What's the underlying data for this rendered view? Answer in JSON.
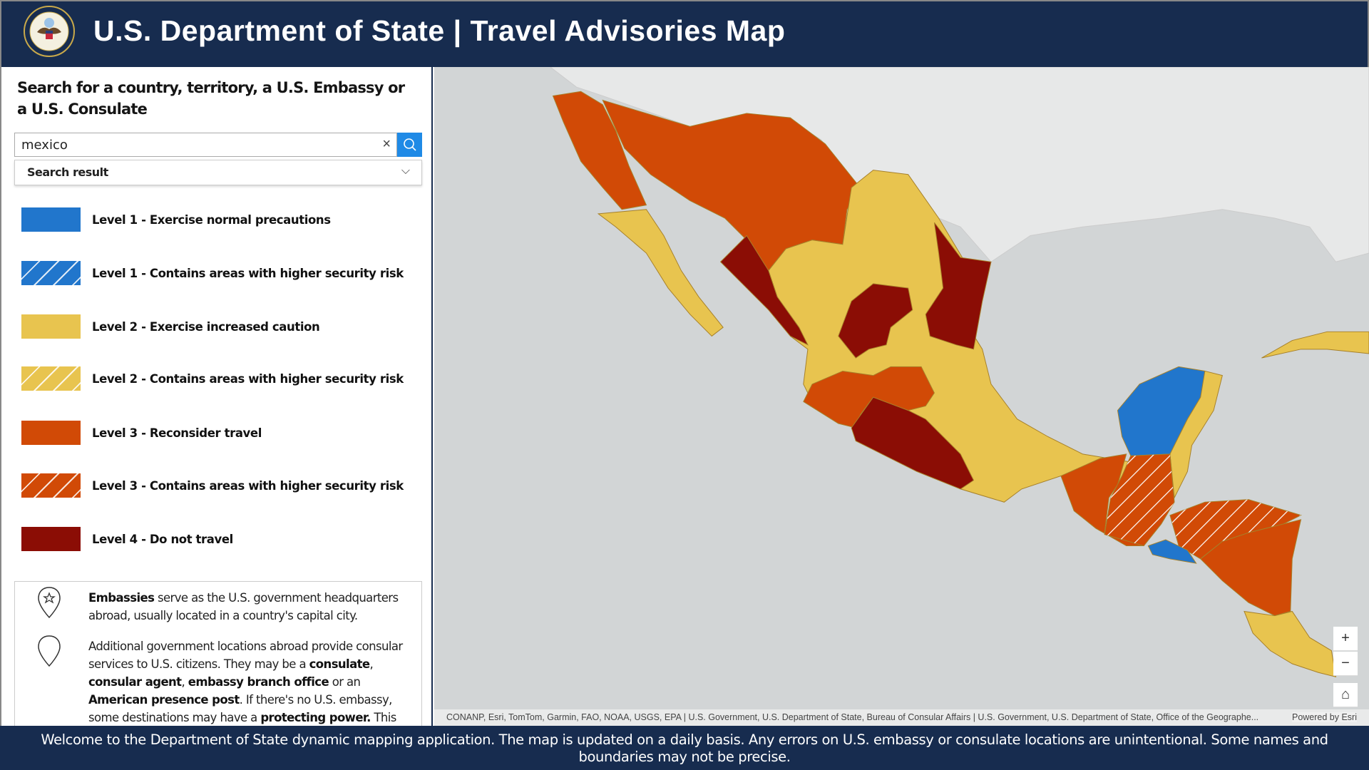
{
  "header": {
    "title": "U.S. Department of State | Travel Advisories Map",
    "seal_text": "Department of State - United States of America"
  },
  "search": {
    "heading": "Search for a country, territory, a U.S. Embassy or a U.S. Consulate",
    "value": "mexico",
    "clear_icon": "×",
    "result_label": "Search result",
    "chevron": "⌵"
  },
  "legend": [
    {
      "label": "Level 1 - Exercise normal precautions",
      "color": "#2176cc"
    },
    {
      "label": "Level 1 - Contains areas with higher security risk",
      "color": "#2176cc"
    },
    {
      "label": "Level 2 - Exercise increased caution",
      "color": "#e8c44f"
    },
    {
      "label": "Level 2 - Contains areas with higher security risk",
      "color": "#e8c44f"
    },
    {
      "label": "Level 3 - Reconsider travel",
      "color": "#d14a06"
    },
    {
      "label": "Level 3 - Contains areas with higher security risk",
      "color": "#d14a06"
    },
    {
      "label": "Level 4 - Do not travel",
      "color": "#8b0d05"
    }
  ],
  "info": {
    "embassies_bold": "Embassies",
    "embassies_text": " serve as the U.S. government headquarters abroad, usually located in a country's capital city.",
    "p2_a": "Additional government locations abroad provide consular services to U.S. citizens. They may be a ",
    "p2_b1": "consulate",
    "p2_sep1": ", ",
    "p2_b2": "consular agent",
    "p2_sep2": ", ",
    "p2_b3": "embassy branch office",
    "p2_c": " or an ",
    "p2_b4": "American presence post",
    "p2_d": ". If there's no U.S. embassy, some destinations may have a ",
    "p2_b5": "protecting power.",
    "p2_e": " This"
  },
  "map": {
    "attribution": "CONANP, Esri, TomTom, Garmin, FAO, NOAA, USGS, EPA | U.S. Government, U.S. Department of State, Bureau of Consular Affairs | U.S. Government, U.S. Department of State, Office of the Geographe...",
    "powered_by": "Powered by Esri",
    "zoom_in": "+",
    "zoom_out": "−",
    "home": "⌂"
  },
  "footer": {
    "text": "Welcome to the Department of State dynamic mapping application. The map is updated on a daily basis.  Any errors on U.S. embassy or consulate locations are unintentional. Some names and boundaries may not be precise."
  }
}
